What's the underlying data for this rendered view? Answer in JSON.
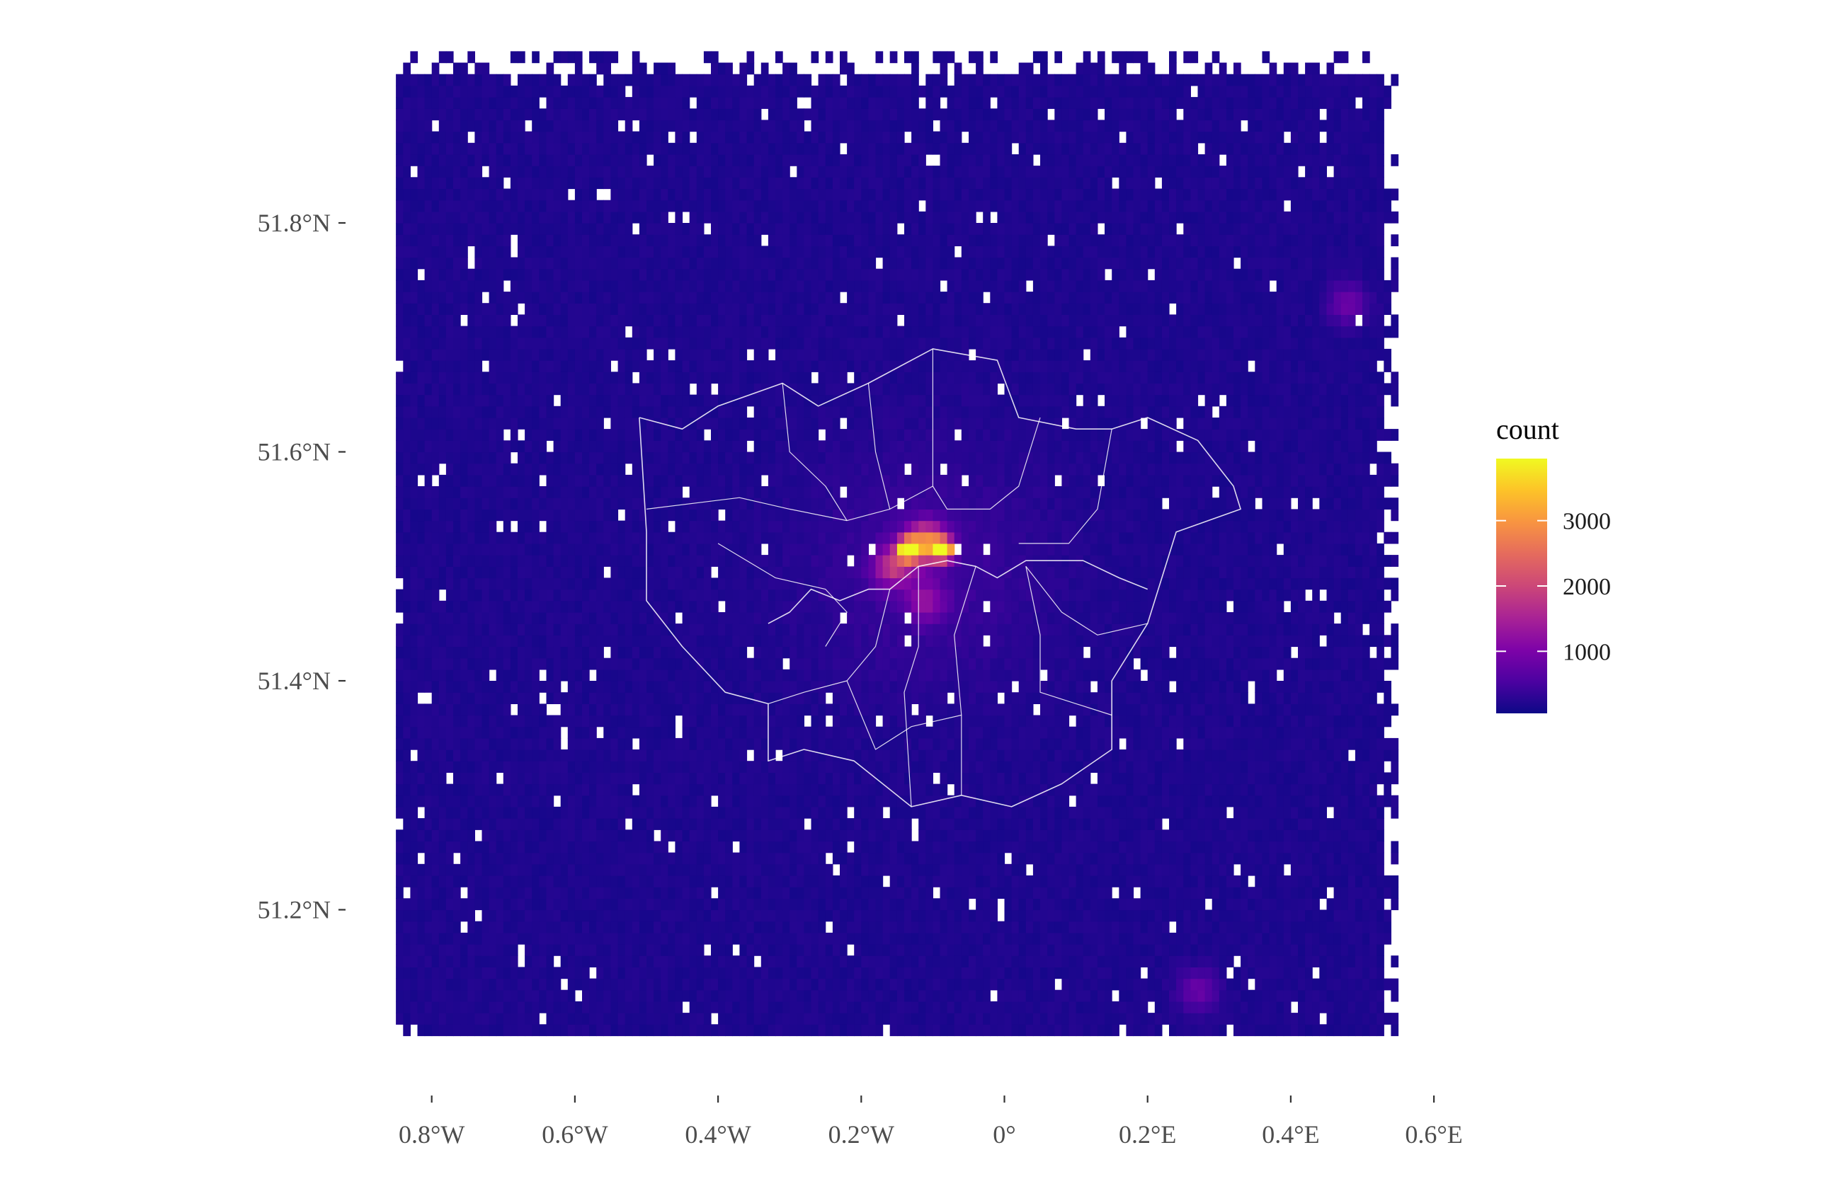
{
  "chart_data": {
    "type": "heatmap",
    "title": "",
    "xlabel": "",
    "ylabel": "",
    "xlim": [
      -0.85,
      0.55
    ],
    "ylim": [
      51.09,
      51.95
    ],
    "x_ticks": [
      {
        "value": -0.8,
        "label": "0.8°W"
      },
      {
        "value": -0.6,
        "label": "0.6°W"
      },
      {
        "value": -0.4,
        "label": "0.4°W"
      },
      {
        "value": -0.2,
        "label": "0.2°W"
      },
      {
        "value": 0.0,
        "label": "0°"
      },
      {
        "value": 0.2,
        "label": "0.2°E"
      },
      {
        "value": 0.4,
        "label": "0.4°E"
      },
      {
        "value": 0.6,
        "label": "0.6°E"
      }
    ],
    "y_ticks": [
      {
        "value": 51.2,
        "label": "51.2°N"
      },
      {
        "value": 51.4,
        "label": "51.4°N"
      },
      {
        "value": 51.6,
        "label": "51.6°N"
      },
      {
        "value": 51.8,
        "label": "51.8°N"
      }
    ],
    "background_level": 120,
    "hotspots": [
      {
        "lon": -0.135,
        "lat": 51.515,
        "value": 3950
      },
      {
        "lon": -0.085,
        "lat": 51.515,
        "value": 3700
      },
      {
        "lon": -0.11,
        "lat": 51.52,
        "value": 2600
      },
      {
        "lon": -0.155,
        "lat": 51.5,
        "value": 1500
      },
      {
        "lon": -0.11,
        "lat": 51.47,
        "value": 900
      },
      {
        "lon": 0.48,
        "lat": 51.73,
        "value": 700
      },
      {
        "lon": 0.27,
        "lat": 51.13,
        "value": 650
      }
    ],
    "legend": {
      "title": "count",
      "ticks": [
        1000,
        2000,
        3000
      ],
      "range": [
        50,
        3950
      ],
      "colormap": "plasma",
      "position": "right"
    },
    "overlay": "London borough boundaries (white outlines)",
    "grid": false
  }
}
